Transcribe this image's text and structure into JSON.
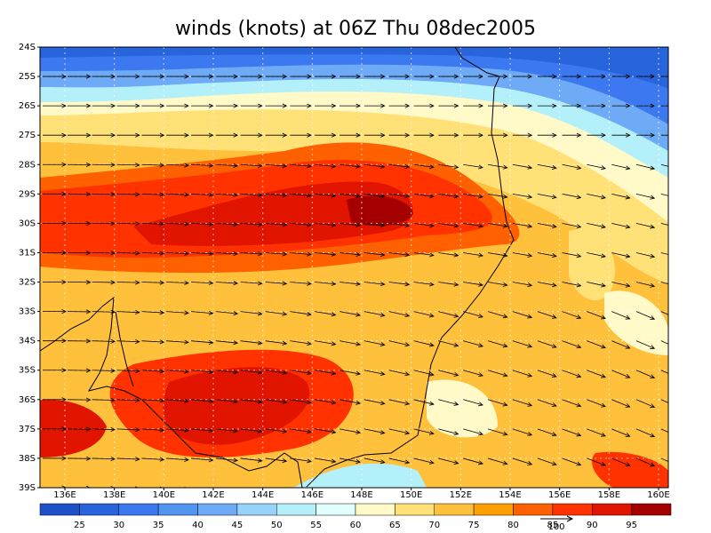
{
  "title": "winds (knots) at 06Z Thu 08dec2005",
  "map": {
    "lat_labels": [
      "24S",
      "25S",
      "26S",
      "27S",
      "28S",
      "29S",
      "30S",
      "31S",
      "32S",
      "33S",
      "34S",
      "35S",
      "36S",
      "37S",
      "38S",
      "39S"
    ],
    "lon_labels": [
      "136E",
      "138E",
      "140E",
      "142E",
      "144E",
      "146E",
      "148E",
      "150E",
      "152E",
      "154E",
      "156E",
      "158E",
      "160E"
    ]
  },
  "colorbar": {
    "labels": [
      "25",
      "30",
      "35",
      "40",
      "45",
      "50",
      "55",
      "60",
      "65",
      "70",
      "75",
      "80",
      "85",
      "90",
      "95"
    ],
    "colors": [
      "#1e50c8",
      "#2864dc",
      "#3c78f0",
      "#5096f0",
      "#6eaaf5",
      "#96d2fa",
      "#b4f0fa",
      "#e1ffff",
      "#fffac8",
      "#ffe178",
      "#ffc03c",
      "#ffa000",
      "#ff6000",
      "#ff3200",
      "#e11400",
      "#a50000"
    ]
  },
  "reference_vector": "100"
}
